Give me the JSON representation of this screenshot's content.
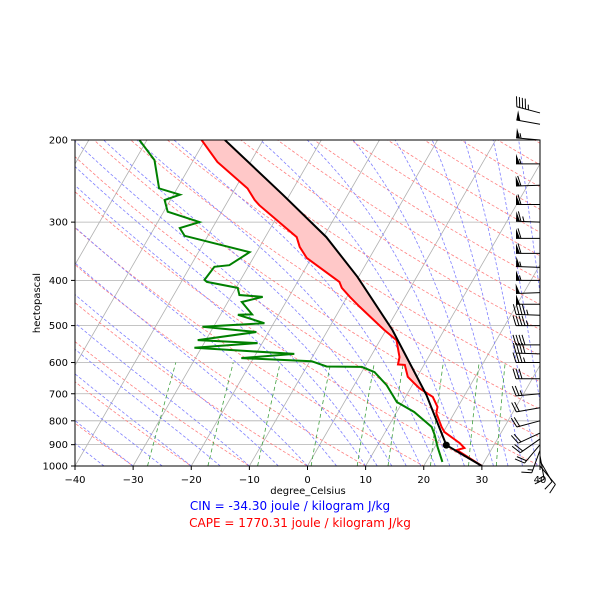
{
  "chart_data": {
    "type": "skew-t",
    "xlabel": "degree_Celsius",
    "ylabel": "hectopascal",
    "xlim": [
      -40,
      40
    ],
    "ylim": [
      1000,
      200
    ],
    "y_scale": "log",
    "skew_rotation_deg": 30,
    "grid": true,
    "xticks": [
      -40,
      -30,
      -20,
      -10,
      0,
      10,
      20,
      30,
      40
    ],
    "yticks": [
      1000,
      900,
      800,
      700,
      600,
      500,
      400,
      300,
      200
    ],
    "isotherms_C": [
      -100,
      -90,
      -80,
      -70,
      -60,
      -50,
      -40,
      -30,
      -20,
      -10,
      0,
      10,
      20,
      30,
      40
    ],
    "dry_adiabats_C_at_1000": [
      -30,
      -20,
      -10,
      0,
      10,
      20,
      30,
      40,
      50,
      60,
      70,
      80,
      90,
      100,
      110,
      120,
      130,
      140,
      150,
      160,
      170,
      180,
      190
    ],
    "moist_adiabats_C_at_1000": [
      -40,
      -35,
      -30,
      -25,
      -20,
      -15,
      -10,
      -5,
      0,
      5,
      10,
      12,
      14.5,
      17,
      19.5,
      22,
      24.5,
      27,
      29.5,
      32,
      34.5,
      37,
      39.5,
      42,
      44.5
    ],
    "mixing_ratio_lines_kg_per_kg": [
      0.0004,
      0.001,
      0.002,
      0.004,
      0.007,
      0.01,
      0.016,
      0.024,
      0.032
    ],
    "colors": {
      "temperature": "#ff0000",
      "dewpoint": "#008000",
      "parcel": "#000000",
      "cape_fill": "#ffc8c8",
      "isotherm": "#b0b0b0",
      "dry_adiabat": "#ff8080",
      "moist_adiabat": "#8080ff",
      "mixing_ratio": "#40a040",
      "cin_text": "#0000ff",
      "cape_text": "#ff0000"
    },
    "temperature": [
      [
        1000,
        30.0
      ],
      [
        924,
        24.1
      ],
      [
        915,
        25.2
      ],
      [
        893,
        23.9
      ],
      [
        846,
        20.2
      ],
      [
        825,
        19.2
      ],
      [
        770,
        16.9
      ],
      [
        747,
        16.5
      ],
      [
        711,
        14.7
      ],
      [
        681,
        11.5
      ],
      [
        644,
        8.4
      ],
      [
        607,
        6.7
      ],
      [
        606,
        5.5
      ],
      [
        584,
        5.0
      ],
      [
        537,
        2.8
      ],
      [
        511,
        -0.3
      ],
      [
        456,
        -6.8
      ],
      [
        434,
        -9.5
      ],
      [
        415,
        -11.8
      ],
      [
        403,
        -12.8
      ],
      [
        358,
        -20.8
      ],
      [
        339,
        -23.1
      ],
      [
        323,
        -24.6
      ],
      [
        276,
        -34.2
      ],
      [
        269,
        -35.5
      ],
      [
        254,
        -37.9
      ],
      [
        223,
        -45.7
      ],
      [
        200,
        -50.6
      ]
    ],
    "dewpoint": [
      [
        980,
        22.8
      ],
      [
        911,
        20.5
      ],
      [
        858,
        18.8
      ],
      [
        825,
        17.5
      ],
      [
        766,
        13.0
      ],
      [
        729,
        9.0
      ],
      [
        671,
        5.6
      ],
      [
        629,
        2.2
      ],
      [
        613,
        -0.5
      ],
      [
        612,
        -6.6
      ],
      [
        596,
        -9.7
      ],
      [
        587,
        -22.1
      ],
      [
        575,
        -13.4
      ],
      [
        558,
        -31.2
      ],
      [
        545,
        -20.8
      ],
      [
        537,
        -31.4
      ],
      [
        516,
        -22.1
      ],
      [
        503,
        -31.9
      ],
      [
        494,
        -21.6
      ],
      [
        474,
        -27.0
      ],
      [
        473,
        -24.6
      ],
      [
        445,
        -27.6
      ],
      [
        434,
        -24.5
      ],
      [
        430,
        -28.7
      ],
      [
        415,
        -29.7
      ],
      [
        403,
        -35.6
      ],
      [
        399,
        -36.2
      ],
      [
        374,
        -35.8
      ],
      [
        371,
        -33.4
      ],
      [
        348,
        -31.2
      ],
      [
        321,
        -44.0
      ],
      [
        309,
        -45.6
      ],
      [
        300,
        -42.8
      ],
      [
        285,
        -49.3
      ],
      [
        269,
        -51.0
      ],
      [
        262,
        -48.9
      ],
      [
        254,
        -53.1
      ],
      [
        221,
        -56.7
      ],
      [
        200,
        -61.3
      ]
    ],
    "parcel_profile": [
      [
        1000,
        30.0
      ],
      [
        902,
        21.8
      ],
      [
        704,
        13.4
      ],
      [
        511,
        1.1
      ],
      [
        393,
        -10.2
      ],
      [
        323,
        -19.5
      ],
      [
        262,
        -31.2
      ],
      [
        200,
        -46.6
      ]
    ],
    "lcl": [
      902,
      21.8
    ],
    "wind_barbs": {
      "units": "knots",
      "fields": [
        "pressure_hPa",
        "speed_kt",
        "direction_deg"
      ],
      "values": [
        [
          1000,
          10,
          140
        ],
        [
          975,
          12,
          150
        ],
        [
          950,
          14,
          170
        ],
        [
          925,
          15,
          200
        ],
        [
          900,
          18,
          220
        ],
        [
          875,
          20,
          235
        ],
        [
          850,
          22,
          245
        ],
        [
          800,
          22,
          255
        ],
        [
          750,
          20,
          260
        ],
        [
          700,
          25,
          265
        ],
        [
          650,
          30,
          270
        ],
        [
          600,
          35,
          270
        ],
        [
          575,
          40,
          272
        ],
        [
          550,
          40,
          270
        ],
        [
          500,
          45,
          270
        ],
        [
          475,
          45,
          272
        ],
        [
          450,
          50,
          270
        ],
        [
          425,
          50,
          268
        ],
        [
          400,
          55,
          270
        ],
        [
          375,
          55,
          272
        ],
        [
          350,
          60,
          270
        ],
        [
          325,
          60,
          270
        ],
        [
          300,
          65,
          272
        ],
        [
          275,
          60,
          270
        ],
        [
          250,
          60,
          268
        ],
        [
          225,
          55,
          270
        ],
        [
          200,
          55,
          275
        ],
        [
          185,
          50,
          280
        ],
        [
          175,
          45,
          285
        ]
      ]
    }
  },
  "annotations": {
    "cin": "CIN = -34.30 joule / kilogram J/kg",
    "cape": "CAPE = 1770.31 joule / kilogram J/kg"
  }
}
